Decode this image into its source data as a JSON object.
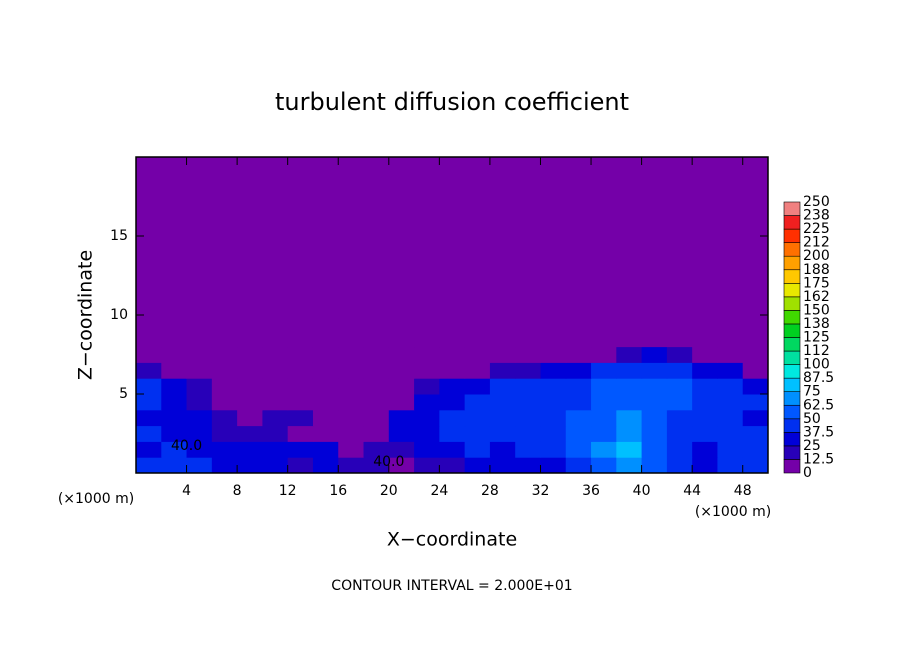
{
  "chart_data": {
    "type": "contour",
    "title": "turbulent diffusion coefficient",
    "xlabel": "X−coordinate",
    "ylabel": "Z−coordinate",
    "x_unit": "(×1000 m)",
    "y_unit": "(×1000 m)",
    "annotation": "CONTOUR INTERVAL = 2.000E+01",
    "xlim": [
      0,
      50
    ],
    "ylim": [
      0,
      20
    ],
    "xticks": [
      4,
      8,
      12,
      16,
      20,
      24,
      28,
      32,
      36,
      40,
      44,
      48
    ],
    "yticks": [
      5,
      10,
      15
    ],
    "xbins": [
      0,
      2,
      4,
      6,
      8,
      10,
      12,
      14,
      16,
      18,
      20,
      22,
      24,
      26,
      28,
      30,
      32,
      34,
      36,
      38,
      40,
      42,
      44,
      46,
      48,
      50
    ],
    "ybins": [
      0,
      1,
      2,
      3,
      4,
      5,
      6,
      7,
      8,
      20
    ],
    "z": [
      [
        40,
        45,
        40,
        35,
        30,
        25,
        20,
        30,
        20,
        15,
        10,
        15,
        20,
        25,
        30,
        35,
        30,
        40,
        60,
        70,
        50,
        40,
        35,
        40,
        45
      ],
      [
        35,
        40,
        30,
        25,
        35,
        30,
        25,
        30,
        10,
        15,
        20,
        30,
        35,
        40,
        35,
        40,
        45,
        50,
        65,
        75,
        55,
        40,
        35,
        40,
        40
      ],
      [
        40,
        35,
        30,
        20,
        15,
        20,
        10,
        5,
        5,
        10,
        30,
        35,
        40,
        45,
        40,
        45,
        40,
        50,
        60,
        70,
        55,
        45,
        40,
        45,
        40
      ],
      [
        30,
        35,
        25,
        15,
        10,
        15,
        20,
        5,
        5,
        5,
        25,
        35,
        40,
        40,
        45,
        45,
        45,
        50,
        55,
        65,
        60,
        45,
        40,
        40,
        35
      ],
      [
        40,
        30,
        20,
        10,
        5,
        5,
        10,
        5,
        0,
        5,
        10,
        30,
        35,
        40,
        45,
        45,
        40,
        45,
        50,
        60,
        60,
        50,
        45,
        40,
        40
      ],
      [
        45,
        35,
        15,
        5,
        5,
        0,
        0,
        0,
        0,
        0,
        5,
        15,
        25,
        35,
        40,
        40,
        45,
        45,
        50,
        55,
        60,
        50,
        45,
        40,
        35
      ],
      [
        20,
        10,
        5,
        0,
        0,
        0,
        0,
        0,
        0,
        0,
        0,
        0,
        5,
        10,
        15,
        20,
        30,
        35,
        40,
        45,
        45,
        40,
        35,
        25,
        10
      ],
      [
        0,
        0,
        0,
        0,
        0,
        0,
        0,
        0,
        0,
        0,
        0,
        0,
        0,
        0,
        0,
        0,
        0,
        5,
        10,
        20,
        25,
        15,
        5,
        0,
        0
      ],
      [
        0,
        0,
        0,
        0,
        0,
        0,
        0,
        0,
        0,
        0,
        0,
        0,
        0,
        0,
        0,
        0,
        0,
        0,
        0,
        0,
        0,
        0,
        0,
        0,
        0
      ]
    ],
    "contour_labels": [
      {
        "x": 4,
        "y": 1.7,
        "value": 40,
        "label": "40.0"
      },
      {
        "x": 20,
        "y": 0.7,
        "value": 40,
        "label": "40.0"
      }
    ],
    "colorbar": {
      "ticks": [
        0,
        12.5,
        25,
        37.5,
        50,
        62.5,
        75,
        87.5,
        100,
        {
          "value": 112.5,
          "label": "112"
        },
        125,
        {
          "value": 137.5,
          "label": "138"
        },
        150,
        {
          "value": 162.5,
          "label": "162"
        },
        175,
        {
          "value": 187.5,
          "label": "188"
        },
        200,
        {
          "value": 212.5,
          "label": "212"
        },
        225,
        {
          "value": 237.5,
          "label": "238"
        },
        250
      ],
      "colors": [
        "#7400a8",
        "#2800b8",
        "#0000d8",
        "#0030f0",
        "#0058ff",
        "#0090ff",
        "#00c0ff",
        "#00e8e0",
        "#00e0a0",
        "#00d860",
        "#00d020",
        "#40d800",
        "#a0e000",
        "#e8e800",
        "#ffc800",
        "#ffa000",
        "#ff7000",
        "#ff3000",
        "#f02020",
        "#f08080"
      ]
    }
  }
}
